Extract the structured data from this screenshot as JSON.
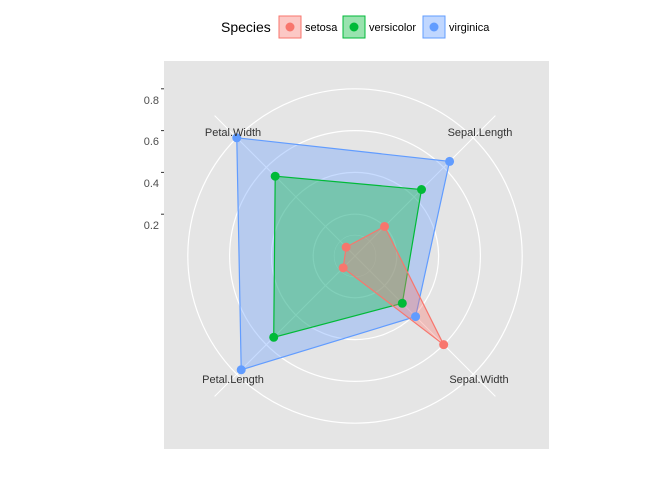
{
  "legend": {
    "title": "Species",
    "position": "top"
  },
  "colors": {
    "setosa": "#F8766D",
    "versicolor": "#00BA38",
    "virginica": "#619CFF",
    "panel": "#E5E5E5",
    "grid": "#FFFFFF"
  },
  "chart_data": {
    "type": "radar",
    "title": "",
    "axes": [
      "Sepal.Length",
      "Sepal.Width",
      "Petal.Length",
      "Petal.Width"
    ],
    "radial_ticks": [
      "0.2",
      "0.4",
      "0.6",
      "0.8"
    ],
    "radial_tick_values": [
      0.2,
      0.4,
      0.6,
      0.8
    ],
    "rlim": [
      0,
      0.9
    ],
    "grid": true,
    "series": [
      {
        "name": "setosa",
        "values": [
          0.2,
          0.6,
          0.08,
          0.06
        ]
      },
      {
        "name": "versicolor",
        "values": [
          0.45,
          0.32,
          0.55,
          0.54
        ]
      },
      {
        "name": "virginica",
        "values": [
          0.64,
          0.41,
          0.77,
          0.8
        ]
      }
    ]
  }
}
